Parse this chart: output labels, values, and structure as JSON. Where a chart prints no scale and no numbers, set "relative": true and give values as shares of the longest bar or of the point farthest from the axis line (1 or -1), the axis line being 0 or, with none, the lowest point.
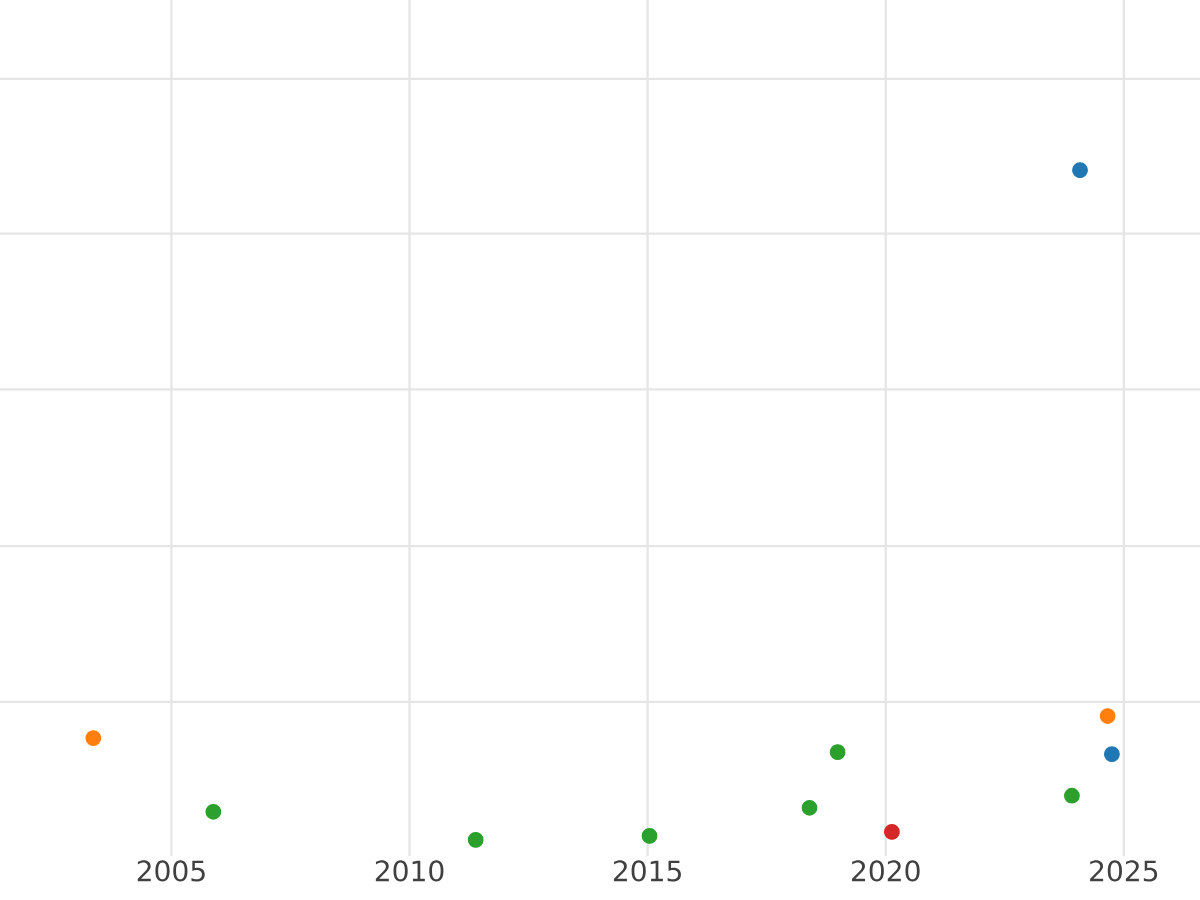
{
  "chart_data": {
    "type": "scatter",
    "relative": true,
    "grid": true,
    "xlim": [
      2001.4,
      2026.6
    ],
    "xticks": [
      2005,
      2010,
      2015,
      2020,
      2025
    ],
    "series": [
      {
        "color": "#1f77b4",
        "x": [
          2024.08,
          2024.75
        ],
        "values": [
          1,
          0.128
        ]
      },
      {
        "color": "#ff7f0e",
        "x": [
          2003.36,
          2024.66
        ],
        "values": [
          0.152,
          0.185
        ]
      },
      {
        "color": "#2ca02c",
        "x": [
          2005.88,
          2011.39,
          2015.04,
          2018.4,
          2018.99,
          2023.91
        ],
        "values": [
          0.042,
          0,
          0.006,
          0.048,
          0.131,
          0.066
        ]
      },
      {
        "color": "#d62728",
        "x": [
          2020.13
        ],
        "values": [
          0.012
        ]
      }
    ]
  }
}
